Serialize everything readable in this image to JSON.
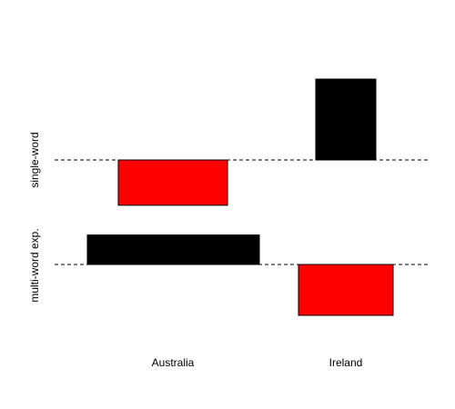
{
  "chart_data": {
    "type": "bar",
    "title": "",
    "xlabel": "",
    "ylabel": "",
    "categories": [
      "Australia",
      "Ireland"
    ],
    "panels": [
      {
        "label": "single-word",
        "ylim": [
          -1,
          1
        ],
        "bars": [
          {
            "category": "Australia",
            "value": -0.56,
            "color": "#ff0000"
          },
          {
            "category": "Ireland",
            "value": 1.0,
            "color": "#000000"
          }
        ]
      },
      {
        "label": "multi-word exp.",
        "ylim": [
          -1,
          1
        ],
        "bars": [
          {
            "category": "Australia",
            "value": 0.58,
            "color": "#000000"
          },
          {
            "category": "Ireland",
            "value": -1.0,
            "color": "#ff0000"
          }
        ]
      }
    ],
    "baseline_style": "dashed",
    "grid": false,
    "legend": "none"
  }
}
